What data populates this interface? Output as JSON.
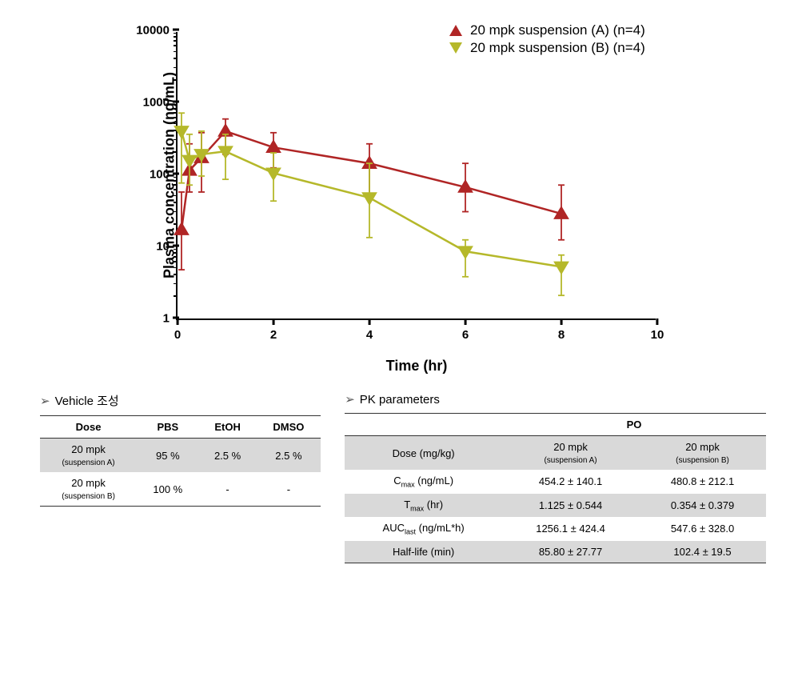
{
  "chart": {
    "type": "line-scatter-logy",
    "ylabel": "Plasma concentration (ng/mL)",
    "xlabel": "Time (hr)",
    "xlim": [
      0,
      10
    ],
    "xticks": [
      0,
      2,
      4,
      6,
      8,
      10
    ],
    "ylim_log": [
      1,
      10000
    ],
    "yticks": [
      1,
      10,
      100,
      1000,
      10000
    ],
    "background_color": "#ffffff",
    "axis_color": "#000000",
    "tick_fontsize": 15,
    "label_fontsize": 18,
    "legend_fontsize": 17,
    "legend_pos": "top-right-inside",
    "line_width": 2.5,
    "marker_size": 9,
    "errorbar_width": 1.8,
    "errorbar_cap": 8,
    "series": [
      {
        "name": "20 mpk suspension (A) (n=4)",
        "color": "#b02525",
        "marker": "triangle-up",
        "x": [
          0.083,
          0.25,
          0.5,
          1,
          2,
          4,
          6,
          8
        ],
        "y": [
          18,
          120,
          180,
          420,
          250,
          150,
          70,
          30
        ],
        "err_lo": [
          5,
          60,
          60,
          200,
          130,
          55,
          32,
          13
        ],
        "err_hi": [
          60,
          280,
          400,
          620,
          400,
          280,
          150,
          75
        ]
      },
      {
        "name": "20 mpk suspension (B) (n=4)",
        "color": "#b5b82a",
        "marker": "triangle-down",
        "x": [
          0.083,
          0.25,
          0.5,
          1,
          2,
          4,
          6,
          8
        ],
        "y": [
          420,
          165,
          200,
          220,
          110,
          50,
          9,
          5.5
        ],
        "err_lo": [
          80,
          75,
          100,
          90,
          45,
          14,
          4,
          2.2
        ],
        "err_hi": [
          750,
          380,
          420,
          380,
          210,
          150,
          13,
          8
        ]
      }
    ]
  },
  "vehicle_table": {
    "title": "Vehicle 조성",
    "columns": [
      "Dose",
      "PBS",
      "EtOH",
      "DMSO"
    ],
    "rows": [
      {
        "dose_main": "20 mpk",
        "dose_sub": "(suspension A)",
        "pbs": "95 %",
        "etoh": "2.5 %",
        "dmso": "2.5 %",
        "alt": true
      },
      {
        "dose_main": "20 mpk",
        "dose_sub": "(suspension B)",
        "pbs": "100 %",
        "etoh": "-",
        "dmso": "-",
        "alt": false
      }
    ]
  },
  "pk_table": {
    "title": "PK parameters",
    "group_header": "PO",
    "col1_main": "20 mpk",
    "col1_sub": "(suspension A)",
    "col2_main": "20 mpk",
    "col2_sub": "(suspension B)",
    "rows": [
      {
        "param_html": "Dose (mg/kg)",
        "a": "20 mpk",
        "a_sub": "(suspension A)",
        "b": "20 mpk",
        "b_sub": "(suspension B)",
        "alt": true,
        "is_header_row": true
      },
      {
        "param": "Cmax",
        "param_sub": "max",
        "param_prefix": "C",
        "unit": " (ng/mL)",
        "a": "454.2  ±  140.1",
        "b": "480.8  ±  212.1",
        "alt": false
      },
      {
        "param": "Tmax",
        "param_sub": "max",
        "param_prefix": "T",
        "unit": " (hr)",
        "a": "1.125  ±  0.544",
        "b": "0.354  ± 0.379",
        "alt": true
      },
      {
        "param": "AUClast",
        "param_sub": "last",
        "param_prefix": "AUC",
        "unit": " (ng/mL*h)",
        "a": "1256.1  ±  424.4",
        "b": "547.6  ±  328.0",
        "alt": false
      },
      {
        "param": "Half-life",
        "unit": " (min)",
        "a": "85.80  ±  27.77",
        "b": "102.4  ±  19.5",
        "alt": true,
        "plain": true
      }
    ]
  }
}
